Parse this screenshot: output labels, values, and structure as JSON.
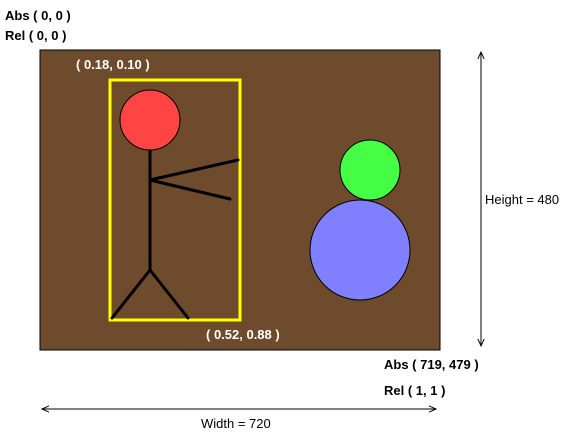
{
  "labels": {
    "abs_origin": "Abs ( 0, 0 )",
    "rel_origin": "Rel ( 0, 0 )",
    "box_top_left": "( 0.18, 0.10 )",
    "box_bottom_right": "( 0.52, 0.88 )",
    "abs_end": "Abs ( 719, 479 )",
    "rel_end": "Rel ( 1, 1 )",
    "height": "Height = 480",
    "width": "Width = 720"
  },
  "colors": {
    "canvas_fill": "#6e4b2c",
    "bounding_box": "#ffff00",
    "head": "#ff4444",
    "green_circle": "#44ff44",
    "blue_circle": "#8080ff",
    "stick_figure": "#000000",
    "label_on_canvas": "#ffffff"
  }
}
